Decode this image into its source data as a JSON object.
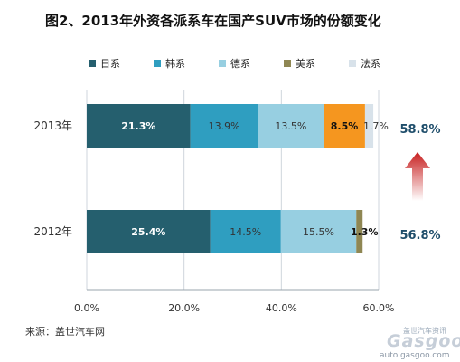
{
  "title": "图2、2013年外资各派系车在国产SUV市场的份额变化",
  "source": "来源：盖世汽车网",
  "watermark": {
    "top_text": "盖世汽车资讯",
    "logo": "Gasgoo",
    "url": "auto.gasgoo.com"
  },
  "colors": {
    "日系": "#255f6e",
    "韩系": "#2f9ec0",
    "德系": "#97cfe1",
    "美系": "#8f8753",
    "美系_2013": "#f5961f",
    "法系": "#d8e2ea",
    "arrow": "#c71f1f",
    "total_text": "#1f4e6b"
  },
  "chart_data": {
    "type": "bar",
    "orientation": "horizontal",
    "stacked": true,
    "title": "图2、2013年外资各派系车在国产SUV市场的份额变化",
    "xlim": [
      0,
      60
    ],
    "x_ticks": [
      "0.0%",
      "20.0%",
      "40.0%",
      "60.0%"
    ],
    "gridlines": true,
    "legend_position": "top",
    "categories": [
      "2013年",
      "2012年"
    ],
    "series": [
      {
        "name": "日系",
        "values": [
          21.3,
          25.4
        ],
        "labels": [
          "21.3%",
          "25.4%"
        ]
      },
      {
        "name": "韩系",
        "values": [
          13.9,
          14.5
        ],
        "labels": [
          "13.9%",
          "14.5%"
        ]
      },
      {
        "name": "德系",
        "values": [
          13.5,
          15.5
        ],
        "labels": [
          "13.5%",
          "15.5%"
        ]
      },
      {
        "name": "美系",
        "values": [
          8.5,
          1.3
        ],
        "labels": [
          "8.5%",
          "1.3%"
        ]
      },
      {
        "name": "法系",
        "values": [
          1.7,
          0
        ],
        "labels": [
          "1.7%",
          ""
        ]
      }
    ],
    "totals": [
      "58.8%",
      "56.8%"
    ],
    "annotation": "upward arrow indicating increase from 2012 to 2013"
  }
}
